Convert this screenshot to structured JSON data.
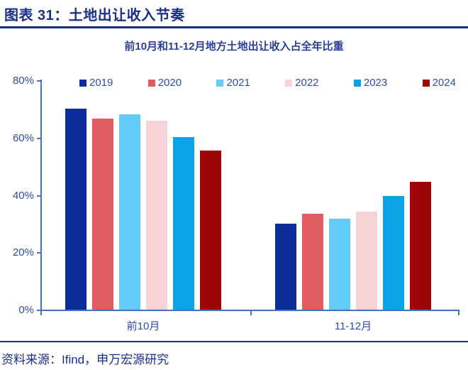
{
  "header": {
    "title": "图表 31：土地出让收入节奏"
  },
  "chart": {
    "subtitle": "前10月和11-12月地方土地出让收入占全年比重"
  },
  "chart_data": {
    "type": "bar",
    "title": "前10月和11-12月地方土地出让收入占全年比重",
    "categories": [
      "前10月",
      "11-12月"
    ],
    "series": [
      {
        "name": "2019",
        "color": "#0C2C9C",
        "values": [
          70.0,
          30.0
        ]
      },
      {
        "name": "2020",
        "color": "#E05C60",
        "values": [
          66.6,
          33.4
        ]
      },
      {
        "name": "2021",
        "color": "#63CCF8",
        "values": [
          68.2,
          31.8
        ]
      },
      {
        "name": "2022",
        "color": "#F6D3D7",
        "values": [
          65.9,
          34.1
        ]
      },
      {
        "name": "2023",
        "color": "#0AA3E6",
        "values": [
          60.3,
          39.7
        ]
      },
      {
        "name": "2024",
        "color": "#9C0408",
        "values": [
          55.4,
          44.6
        ]
      }
    ],
    "ylim": [
      0,
      80
    ],
    "ytick_step": 20,
    "ytick_labels": [
      "0%",
      "20%",
      "40%",
      "60%",
      "80%"
    ],
    "grid": false,
    "legend_position": "top"
  },
  "footer": {
    "source": "资料来源：Ifind，申万宏源研究"
  },
  "colors": {
    "title_navy": "#1A2E8C",
    "label_blue": "#2E4BA8",
    "axis_blue": "#4472C4"
  }
}
